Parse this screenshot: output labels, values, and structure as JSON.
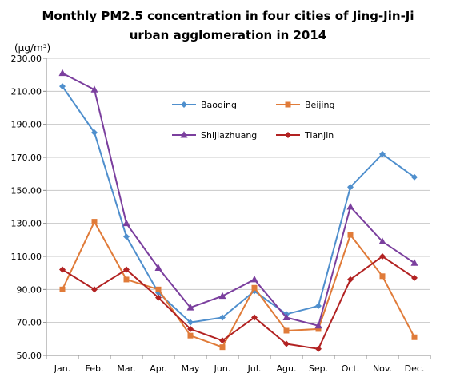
{
  "chart_data": {
    "type": "line",
    "title": [
      "Monthly PM2.5 concentration in four cities of Jing-Jin-Ji",
      "urban agglomeration in 2014"
    ],
    "ylabel": "(μg/m³)",
    "xlabel": "",
    "ylim": [
      50,
      230
    ],
    "yticks": [
      "50.00",
      "70.00",
      "90.00",
      "110.00",
      "130.00",
      "150.00",
      "170.00",
      "190.00",
      "210.00",
      "230.00"
    ],
    "categories": [
      "Jan.",
      "Feb.",
      "Mar.",
      "Apr.",
      "May",
      "Jun.",
      "Jul.",
      "Agu.",
      "Sep.",
      "Oct.",
      "Nov.",
      "Dec."
    ],
    "grid": true,
    "legend_position": "upper-center",
    "series": [
      {
        "name": "Baoding",
        "color": "#4F8FCD",
        "marker": "diamond",
        "values": [
          213,
          185,
          122,
          88,
          70,
          73,
          89,
          75,
          80,
          152,
          172,
          158
        ]
      },
      {
        "name": "Beijing",
        "color": "#E07B39",
        "marker": "square",
        "values": [
          90,
          131,
          96,
          90,
          62,
          55,
          91,
          65,
          66,
          123,
          98,
          61
        ]
      },
      {
        "name": "Shijiazhuang",
        "color": "#7B3F9E",
        "marker": "triangle",
        "values": [
          221,
          211,
          130,
          103,
          79,
          86,
          96,
          73,
          68,
          140,
          119,
          106
        ]
      },
      {
        "name": "Tianjin",
        "color": "#B22222",
        "marker": "diamond",
        "values": [
          102,
          90,
          102,
          85,
          66,
          59,
          73,
          57,
          54,
          96,
          110,
          97
        ]
      }
    ]
  }
}
